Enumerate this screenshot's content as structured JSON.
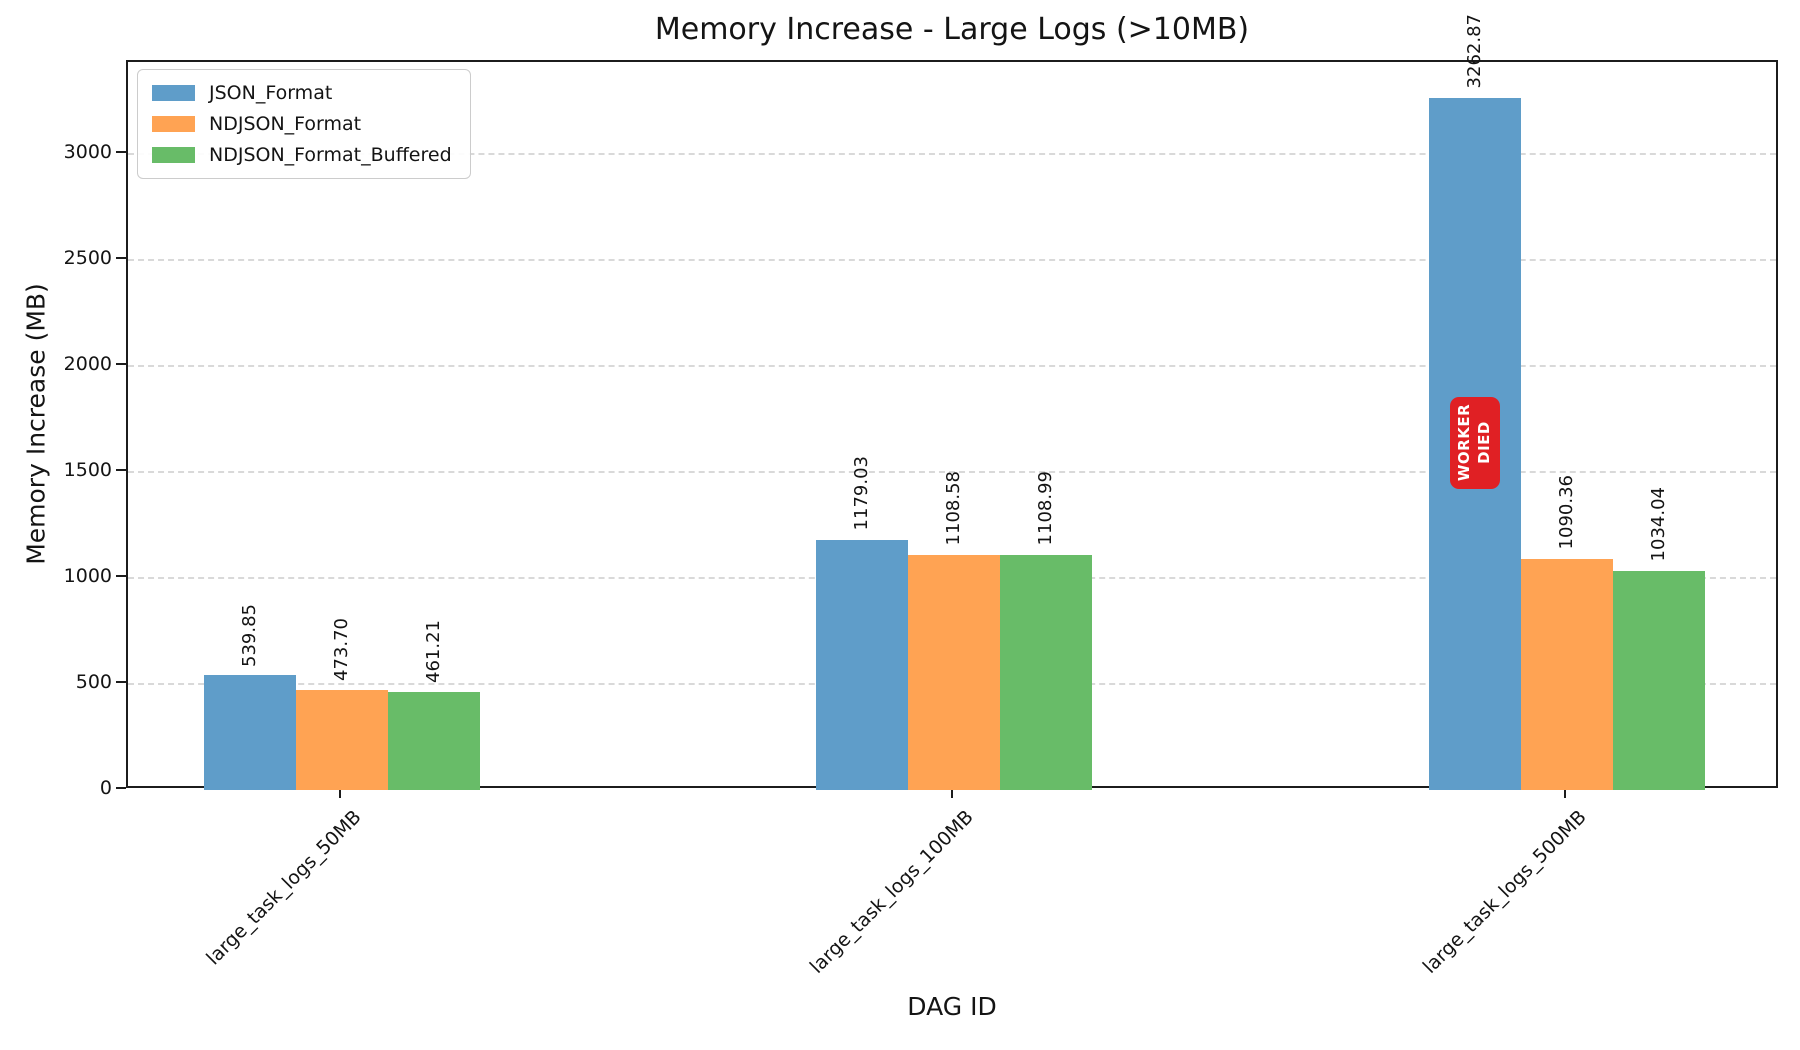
{
  "chart_data": {
    "type": "bar",
    "title": "Memory Increase - Large Logs (>10MB)",
    "xlabel": "DAG ID",
    "ylabel": "Memory Increase (MB)",
    "categories": [
      "large_task_logs_50MB",
      "large_task_logs_100MB",
      "large_task_logs_500MB"
    ],
    "series": [
      {
        "name": "JSON_Format",
        "color": "#5F9DC9",
        "values": [
          539.85,
          1179.03,
          3262.87
        ],
        "labels": [
          "539.85",
          "1179.03",
          "3262.87"
        ]
      },
      {
        "name": "NDJSON_Format",
        "color": "#FFA353",
        "values": [
          473.7,
          1108.58,
          1090.36
        ],
        "labels": [
          "473.70",
          "1108.58",
          "1090.36"
        ]
      },
      {
        "name": "NDJSON_Format_Buffered",
        "color": "#68BC68",
        "values": [
          461.21,
          1108.99,
          1034.04
        ],
        "labels": [
          "461.21",
          "1108.99",
          "1034.04"
        ]
      }
    ],
    "yticks": [
      0,
      500,
      1000,
      1500,
      2000,
      2500,
      3000
    ],
    "ylim": [
      0,
      3432
    ],
    "grid": "horizontal-dashed",
    "legend_position": "upper-left",
    "annotation": {
      "lines": [
        "WORKER",
        "DIED"
      ],
      "color": "#E02024",
      "target_series": "JSON_Format",
      "target_category": "large_task_logs_500MB",
      "center_value_mb": 1636
    }
  }
}
